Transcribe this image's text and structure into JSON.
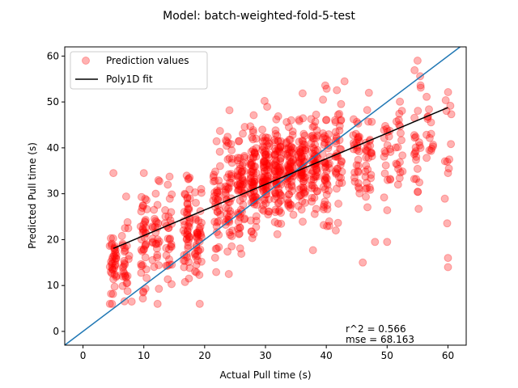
{
  "chart_data": {
    "type": "scatter",
    "title": "Model: batch-weighted-fold-5-test",
    "xlabel": "Actual Pull time (s)",
    "ylabel": "Predicted Pull time (s)",
    "xlim": [
      -3,
      63
    ],
    "ylim": [
      -3,
      62
    ],
    "xticks": [
      0,
      10,
      20,
      30,
      40,
      50,
      60
    ],
    "yticks": [
      0,
      10,
      20,
      30,
      40,
      50,
      60
    ],
    "legend_position": "upper-left",
    "legend": [
      {
        "label": "Prediction values",
        "kind": "marker",
        "color": "#ff0000"
      },
      {
        "label": "Poly1D fit",
        "kind": "line",
        "color": "#000000"
      }
    ],
    "annotations": {
      "r2": "r^2 = 0.566",
      "mse": "mse = 68.163"
    },
    "fit_line": {
      "slope": 0.558,
      "intercept": 15.3,
      "x_range": [
        5,
        60
      ],
      "color": "#000000"
    },
    "identity_line": {
      "slope": 1,
      "intercept": 0,
      "color": "#1f77b4"
    },
    "scatter_color": "#ff0000",
    "scatter_alpha": 0.3,
    "clusters": [
      {
        "x": 5,
        "y_mean": 15,
        "y_sd": 4.0,
        "n": 40
      },
      {
        "x": 7,
        "y_mean": 16,
        "y_sd": 4.5,
        "n": 30
      },
      {
        "x": 10,
        "y_mean": 20,
        "y_sd": 5.5,
        "n": 40
      },
      {
        "x": 12,
        "y_mean": 21,
        "y_sd": 5.0,
        "n": 30
      },
      {
        "x": 14,
        "y_mean": 21,
        "y_sd": 5.5,
        "n": 30
      },
      {
        "x": 17,
        "y_mean": 24,
        "y_sd": 6.5,
        "n": 50
      },
      {
        "x": 19,
        "y_mean": 22,
        "y_sd": 6.0,
        "n": 40
      },
      {
        "x": 22,
        "y_mean": 28,
        "y_sd": 6.5,
        "n": 40
      },
      {
        "x": 24,
        "y_mean": 30,
        "y_sd": 6.5,
        "n": 50
      },
      {
        "x": 26,
        "y_mean": 32,
        "y_sd": 6.0,
        "n": 60
      },
      {
        "x": 28,
        "y_mean": 33,
        "y_sd": 6.0,
        "n": 70
      },
      {
        "x": 30,
        "y_mean": 35,
        "y_sd": 5.5,
        "n": 80
      },
      {
        "x": 32,
        "y_mean": 35,
        "y_sd": 5.5,
        "n": 80
      },
      {
        "x": 34,
        "y_mean": 36,
        "y_sd": 5.0,
        "n": 70
      },
      {
        "x": 36,
        "y_mean": 36,
        "y_sd": 5.0,
        "n": 70
      },
      {
        "x": 38,
        "y_mean": 37,
        "y_sd": 5.0,
        "n": 60
      },
      {
        "x": 40,
        "y_mean": 37,
        "y_sd": 5.5,
        "n": 50
      },
      {
        "x": 42,
        "y_mean": 37,
        "y_sd": 5.0,
        "n": 40
      },
      {
        "x": 45,
        "y_mean": 38,
        "y_sd": 5.0,
        "n": 30
      },
      {
        "x": 47,
        "y_mean": 37,
        "y_sd": 6.0,
        "n": 30
      },
      {
        "x": 50,
        "y_mean": 38,
        "y_sd": 5.5,
        "n": 20
      },
      {
        "x": 52,
        "y_mean": 40,
        "y_sd": 5.0,
        "n": 20
      },
      {
        "x": 55,
        "y_mean": 41,
        "y_sd": 6.5,
        "n": 25
      },
      {
        "x": 57,
        "y_mean": 40,
        "y_sd": 5.0,
        "n": 15
      },
      {
        "x": 60,
        "y_mean": 45,
        "y_sd": 10.0,
        "n": 12
      }
    ],
    "outliers": [
      [
        8,
        6.5
      ],
      [
        10,
        34.5
      ],
      [
        46,
        15
      ],
      [
        48,
        19.5
      ],
      [
        50,
        19.5
      ],
      [
        55,
        59
      ],
      [
        60,
        14
      ],
      [
        60,
        16
      ],
      [
        60,
        34.5
      ],
      [
        43,
        54.5
      ],
      [
        47,
        52
      ],
      [
        5,
        34.5
      ]
    ]
  }
}
